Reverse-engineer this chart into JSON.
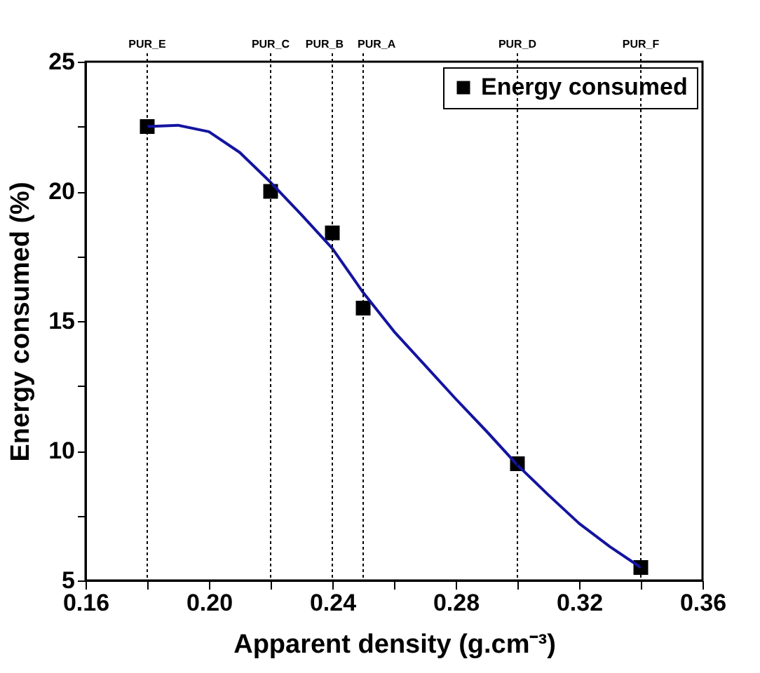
{
  "chart_data": {
    "type": "scatter",
    "xlabel": "Apparent density (g.cm⁻³)",
    "ylabel": "Energy consumed (%)",
    "xlim": [
      0.16,
      0.36
    ],
    "ylim": [
      5,
      25
    ],
    "xticks": [
      0.16,
      {
        "value": 0.18,
        "label": null
      },
      {
        "value": 0.2,
        "label": "0.20"
      },
      {
        "value": 0.22,
        "label": null
      },
      0.24,
      {
        "value": 0.26,
        "label": null
      },
      0.28,
      {
        "value": 0.3,
        "label": null
      },
      0.32,
      {
        "value": 0.34,
        "label": null
      },
      0.36
    ],
    "yticks": [
      5,
      {
        "value": 7.5,
        "label": null
      },
      10,
      {
        "value": 12.5,
        "label": null
      },
      15,
      {
        "value": 17.5,
        "label": null
      },
      20,
      {
        "value": 22.5,
        "label": null
      },
      25
    ],
    "grid": false,
    "legend": "top right",
    "series": [
      {
        "name": "Energy consumed",
        "marker": "square",
        "color": "#000000",
        "x": [
          0.18,
          0.22,
          0.24,
          0.25,
          0.3,
          0.34
        ],
        "values": [
          22.5,
          20.0,
          18.4,
          15.5,
          9.5,
          5.5
        ]
      },
      {
        "type": "line",
        "line_style": "solid",
        "marker": "none",
        "color": "#1414a0",
        "x": [
          0.18,
          0.19,
          0.2,
          0.21,
          0.22,
          0.23,
          0.24,
          0.25,
          0.26,
          0.27,
          0.28,
          0.29,
          0.3,
          0.31,
          0.32,
          0.33,
          0.34
        ],
        "values": [
          22.5,
          22.55,
          22.3,
          21.5,
          20.35,
          19.1,
          17.8,
          16.1,
          14.6,
          13.3,
          12.0,
          10.75,
          9.45,
          8.3,
          7.2,
          6.3,
          5.5
        ]
      }
    ],
    "ref_lines": [
      {
        "axis": "x",
        "value": 0.18,
        "label": "PUR_E",
        "line_style": "dotted",
        "color": "#000000"
      },
      {
        "axis": "x",
        "value": 0.22,
        "label": "PUR_C",
        "line_style": "dotted",
        "color": "#000000"
      },
      {
        "axis": "x",
        "value": 0.24,
        "label": "PUR_B",
        "line_style": "dotted",
        "color": "#000000"
      },
      {
        "axis": "x",
        "value": 0.25,
        "label": "PUR_A",
        "line_style": "dotted",
        "color": "#000000"
      },
      {
        "axis": "x",
        "value": 0.3,
        "label": "PUR_D",
        "line_style": "dotted",
        "color": "#000000"
      },
      {
        "axis": "x",
        "value": 0.34,
        "label": "PUR_F",
        "line_style": "dotted",
        "color": "#000000"
      }
    ]
  }
}
